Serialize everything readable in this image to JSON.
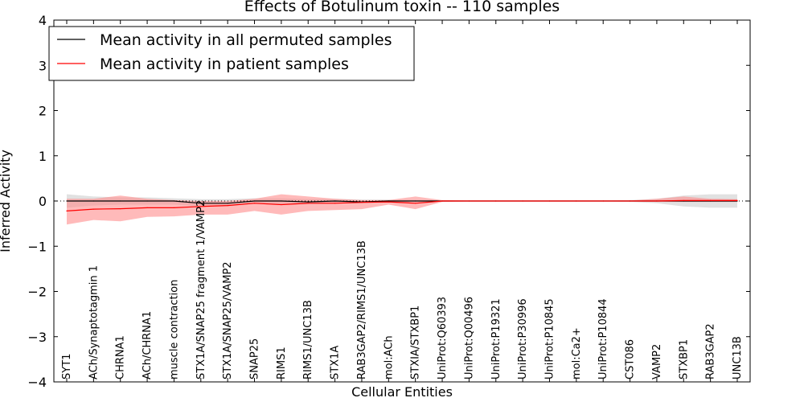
{
  "chart_data": {
    "type": "line",
    "title": "Effects of Botulinum toxin -- 110 samples",
    "xlabel": "Cellular Entities",
    "ylabel": "Inferred Activity",
    "ylim": [
      -4,
      4
    ],
    "yticks": [
      -4,
      -3,
      -2,
      -1,
      0,
      1,
      2,
      3,
      4
    ],
    "ytick_labels": [
      "−4",
      "−3",
      "−2",
      "−1",
      "0",
      "1",
      "2",
      "3",
      "4"
    ],
    "grid": false,
    "legend_position": "top-left",
    "categories": [
      "SYT1",
      "ACh/Synaptotagmin 1",
      "CHRNA1",
      "ACh/CHRNA1",
      "muscle contraction",
      "STX1A/SNAP25 fragment 1/VAMP2",
      "STX1A/SNAP25/VAMP2",
      "SNAP25",
      "RIMS1",
      "RIMS1/UNC13B",
      "STX1A",
      "RAB3GAP2/RIMS1/UNC13B",
      "mol:ACh",
      "STXIA/STXBP1",
      "UniProt:Q60393",
      "UniProt:Q00496",
      "UniProt:P19321",
      "UniProt:P30996",
      "UniProt:P10845",
      "mol:Ca2+",
      "UniProt:P10844",
      "CST086",
      "VAMP2",
      "STXBP1",
      "RAB3GAP2",
      "UNC13B"
    ],
    "series": [
      {
        "name": "Mean activity in all permuted samples",
        "color": "#000000",
        "band_color": "#c8c8c8",
        "values": [
          0,
          0,
          0,
          0,
          0,
          -0.05,
          -0.05,
          0,
          0,
          -0.02,
          0,
          -0.02,
          0,
          0,
          0,
          0,
          0,
          0,
          0,
          0,
          0,
          0,
          0,
          0,
          0,
          0
        ],
        "lower": [
          -0.15,
          -0.1,
          -0.08,
          -0.08,
          -0.08,
          -0.12,
          -0.12,
          -0.06,
          -0.06,
          -0.06,
          -0.05,
          -0.06,
          -0.03,
          -0.02,
          -0.01,
          -0.01,
          -0.01,
          -0.01,
          -0.01,
          -0.01,
          -0.01,
          -0.02,
          -0.05,
          -0.12,
          -0.15,
          -0.15
        ],
        "upper": [
          0.15,
          0.1,
          0.08,
          0.08,
          0.06,
          0.04,
          0.04,
          0.06,
          0.06,
          0.04,
          0.05,
          0.03,
          0.03,
          0.02,
          0.01,
          0.01,
          0.01,
          0.01,
          0.01,
          0.01,
          0.01,
          0.02,
          0.05,
          0.12,
          0.15,
          0.15
        ]
      },
      {
        "name": "Mean activity in patient samples",
        "color": "#ff0000",
        "band_color": "#ff8c8c",
        "values": [
          -0.22,
          -0.18,
          -0.17,
          -0.15,
          -0.15,
          -0.12,
          -0.1,
          -0.05,
          -0.08,
          -0.05,
          -0.05,
          -0.03,
          -0.02,
          -0.05,
          0,
          0,
          0,
          0,
          0,
          0,
          0,
          0,
          0,
          0.01,
          0.01,
          0.01
        ],
        "lower": [
          -0.52,
          -0.42,
          -0.45,
          -0.35,
          -0.34,
          -0.3,
          -0.3,
          -0.22,
          -0.3,
          -0.22,
          -0.2,
          -0.18,
          -0.08,
          -0.18,
          -0.02,
          -0.01,
          -0.01,
          -0.01,
          -0.01,
          -0.01,
          -0.01,
          -0.01,
          -0.02,
          -0.02,
          -0.02,
          -0.02
        ],
        "upper": [
          0.05,
          0.05,
          0.12,
          0.05,
          0.02,
          0.0,
          0.0,
          0.05,
          0.15,
          0.1,
          0.05,
          0.02,
          0.02,
          0.1,
          0.02,
          0.01,
          0.01,
          0.01,
          0.01,
          0.01,
          0.01,
          0.01,
          0.05,
          0.1,
          0.05,
          0.04
        ]
      }
    ]
  }
}
